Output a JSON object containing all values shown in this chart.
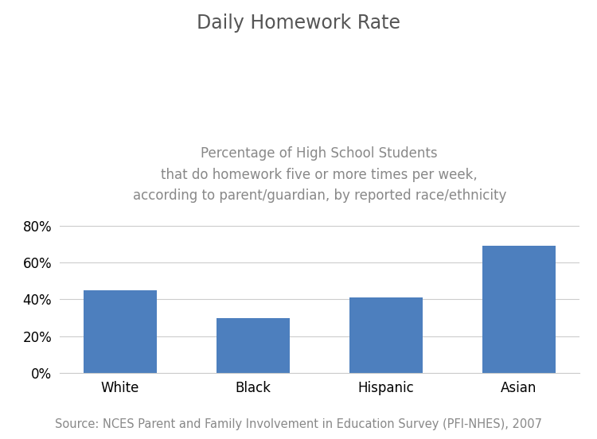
{
  "title": "Daily Homework Rate",
  "subtitle": "Percentage of High School Students\nthat do homework five or more times per week,\naccording to parent/guardian, by reported race/ethnicity",
  "source": "Source: NCES Parent and Family Involvement in Education Survey (PFI-NHES), 2007",
  "categories": [
    "White",
    "Black",
    "Hispanic",
    "Asian"
  ],
  "values": [
    0.45,
    0.3,
    0.41,
    0.69
  ],
  "bar_color": "#4d7fbe",
  "ylim": [
    0,
    0.88
  ],
  "yticks": [
    0,
    0.2,
    0.4,
    0.6,
    0.8
  ],
  "background_color": "#ffffff",
  "title_fontsize": 17,
  "subtitle_fontsize": 12,
  "tick_fontsize": 12,
  "source_fontsize": 10.5
}
